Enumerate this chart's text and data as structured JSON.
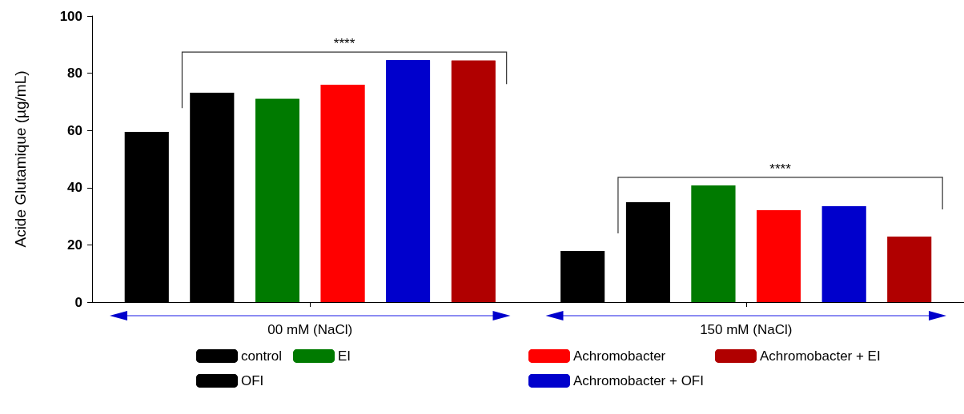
{
  "chart_data": {
    "type": "bar",
    "categories": [
      "00 mM (NaCl)",
      "150 mM (NaCl)"
    ],
    "ylabel": "Acide Glutamique (µg/mL)",
    "ylim": [
      0,
      100
    ],
    "yticks": [
      0,
      20,
      40,
      60,
      80,
      100
    ],
    "grid": false,
    "legend": "bottom",
    "annotations": [
      "****",
      "****"
    ],
    "series": [
      {
        "name": "control",
        "color": "#000000",
        "values": [
          59.5,
          17.9
        ]
      },
      {
        "name": "OFI",
        "color": "#000000",
        "values": [
          73.2,
          34.9
        ]
      },
      {
        "name": "EI",
        "color": "#007a00",
        "values": [
          71.0,
          40.8
        ]
      },
      {
        "name": "Achromobacter",
        "color": "#ff0000",
        "values": [
          76.0,
          32.1
        ]
      },
      {
        "name": "Achromobacter + OFI",
        "color": "#0000cc",
        "values": [
          84.6,
          33.5
        ]
      },
      {
        "name": "Achromobacter + EI",
        "color": "#b00000",
        "values": [
          84.4,
          22.9
        ]
      }
    ]
  }
}
